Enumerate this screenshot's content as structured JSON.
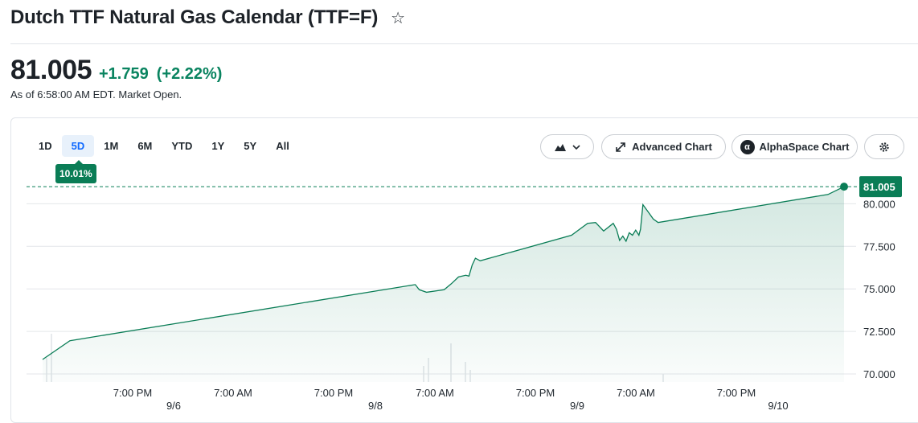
{
  "header": {
    "title": "Dutch TTF Natural Gas Calendar (TTF=F)",
    "star_icon": "star-outline-icon",
    "price": "81.005",
    "change": "+1.759",
    "change_pct": "(+2.22%)",
    "as_of": "As of 6:58:00 AM EDT. Market Open.",
    "positive_color": "#0a8460"
  },
  "toolbar": {
    "ranges": [
      "1D",
      "5D",
      "1M",
      "6M",
      "YTD",
      "1Y",
      "5Y",
      "All"
    ],
    "active_range": "5D",
    "range_change": "10.01%",
    "chart_type_icon": "mountain-chart-icon",
    "advanced_chart_label": "Advanced Chart",
    "alphaspace_label": "AlphaSpace Chart",
    "settings_icon": "gear-icon"
  },
  "chart_data": {
    "type": "area",
    "line_color": "#0a7d56",
    "current_price_label": "81.005",
    "ylim": [
      70.0,
      81.2
    ],
    "y_ticks": [
      "80.000",
      "77.500",
      "75.000",
      "72.500",
      "70.000"
    ],
    "y_tick_values": [
      80.0,
      77.5,
      75.0,
      72.5,
      70.0
    ],
    "x_time_labels": [
      "7:00 PM",
      "7:00 AM",
      "7:00 PM",
      "7:00 AM",
      "7:00 PM",
      "7:00 AM",
      "7:00 PM"
    ],
    "x_date_labels": [
      "9/6",
      "9/8",
      "9/9",
      "9/10"
    ],
    "grid": true,
    "series": [
      {
        "points": [
          [
            0.0,
            70.85
          ],
          [
            0.034,
            71.95
          ],
          [
            0.465,
            75.25
          ],
          [
            0.47,
            74.95
          ],
          [
            0.479,
            74.8
          ],
          [
            0.501,
            74.95
          ],
          [
            0.51,
            75.3
          ],
          [
            0.519,
            75.7
          ],
          [
            0.528,
            75.8
          ],
          [
            0.532,
            75.75
          ],
          [
            0.536,
            76.4
          ],
          [
            0.54,
            76.8
          ],
          [
            0.546,
            76.65
          ],
          [
            0.66,
            78.15
          ],
          [
            0.68,
            78.85
          ],
          [
            0.69,
            78.9
          ],
          [
            0.7,
            78.4
          ],
          [
            0.712,
            78.85
          ],
          [
            0.716,
            78.5
          ],
          [
            0.72,
            77.85
          ],
          [
            0.724,
            78.1
          ],
          [
            0.728,
            77.8
          ],
          [
            0.732,
            78.3
          ],
          [
            0.736,
            78.15
          ],
          [
            0.74,
            78.45
          ],
          [
            0.744,
            78.15
          ],
          [
            0.746,
            78.5
          ],
          [
            0.749,
            79.95
          ],
          [
            0.756,
            79.5
          ],
          [
            0.762,
            79.1
          ],
          [
            0.768,
            78.9
          ],
          [
            0.98,
            80.55
          ],
          [
            1.0,
            81.005
          ]
        ]
      }
    ]
  }
}
